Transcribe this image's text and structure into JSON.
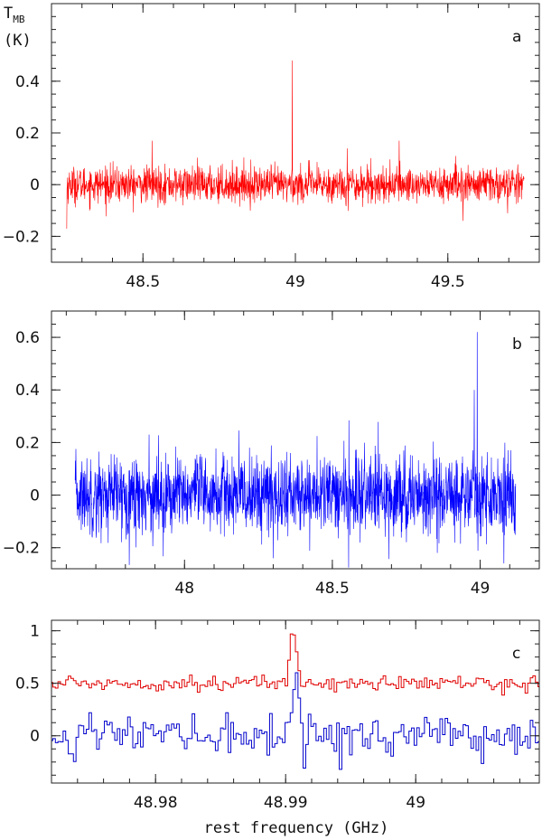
{
  "figure": {
    "ylabel_main": "T",
    "ylabel_sub": "MB",
    "ylabel_unit": "(K)",
    "xlabel": "rest frequency (GHz)"
  },
  "chart_data": [
    {
      "id": "a",
      "type": "line",
      "label": "a",
      "xlim": [
        48.2,
        49.8
      ],
      "ylim": [
        -0.3,
        0.7
      ],
      "xticks": [
        48.5,
        49,
        49.5
      ],
      "xtick_labels": [
        "48.5",
        "49",
        "49.5"
      ],
      "yticks": [
        -0.2,
        0,
        0.2,
        0.4
      ],
      "ytick_labels": [
        "−0.2",
        "0",
        "0.2",
        "0.4"
      ],
      "series": [
        {
          "color": "#ff0000",
          "noise": {
            "x_start": 48.25,
            "x_end": 49.75,
            "n": 1700,
            "rms": 0.035
          },
          "points": [
            {
              "x": 48.25,
              "y": -0.17
            },
            {
              "x": 48.53,
              "y": 0.17
            },
            {
              "x": 48.99,
              "y": 0.48
            },
            {
              "x": 49.34,
              "y": 0.17
            },
            {
              "x": 49.17,
              "y": 0.14
            },
            {
              "x": 49.55,
              "y": -0.14
            }
          ]
        }
      ]
    },
    {
      "id": "b",
      "type": "line",
      "label": "b",
      "xlim": [
        47.55,
        49.2
      ],
      "ylim": [
        -0.28,
        0.7
      ],
      "xticks": [
        48,
        48.5,
        49
      ],
      "xtick_labels": [
        "48",
        "48.5",
        "49"
      ],
      "yticks": [
        -0.2,
        0,
        0.2,
        0.4,
        0.6
      ],
      "ytick_labels": [
        "−0.2",
        "0",
        "0.2",
        "0.4",
        "0.6"
      ],
      "series": [
        {
          "color": "#0000ff",
          "noise": {
            "x_start": 47.63,
            "x_end": 49.12,
            "n": 1800,
            "rms": 0.075
          },
          "points": [
            {
              "x": 48.99,
              "y": 0.62
            },
            {
              "x": 48.98,
              "y": 0.4
            },
            {
              "x": 47.88,
              "y": 0.23
            },
            {
              "x": 49.08,
              "y": -0.26
            },
            {
              "x": 48.3,
              "y": -0.24
            }
          ]
        }
      ]
    },
    {
      "id": "c",
      "type": "line",
      "step": true,
      "label": "c",
      "xlim": [
        48.972,
        49.0095
      ],
      "ylim": [
        -0.45,
        1.1
      ],
      "xticks": [
        48.98,
        48.99,
        49
      ],
      "xtick_labels": [
        "48.98",
        "48.99",
        "49"
      ],
      "yticks": [
        0,
        0.5,
        1
      ],
      "ytick_labels": [
        "0",
        "0.5",
        "1"
      ],
      "series": [
        {
          "color": "#e00000",
          "offset": 0.5,
          "noise": {
            "x_start": 48.972,
            "x_end": 49.0095,
            "n": 190,
            "rms": 0.035
          },
          "points": [
            {
              "x": 48.9903,
              "y": 0.72
            },
            {
              "x": 48.9905,
              "y": 0.97
            },
            {
              "x": 48.9907,
              "y": 0.96
            },
            {
              "x": 48.9909,
              "y": 0.8
            },
            {
              "x": 48.9911,
              "y": 0.62
            }
          ]
        },
        {
          "color": "#0000cc",
          "offset": 0.0,
          "noise": {
            "x_start": 48.972,
            "x_end": 49.0095,
            "n": 190,
            "rms": 0.09
          },
          "points": [
            {
              "x": 48.9905,
              "y": 0.22
            },
            {
              "x": 48.9907,
              "y": 0.44
            },
            {
              "x": 48.9909,
              "y": 0.6
            },
            {
              "x": 48.9911,
              "y": 0.36
            },
            {
              "x": 48.9913,
              "y": 0.12
            },
            {
              "x": 48.975,
              "y": 0.22
            },
            {
              "x": 48.9855,
              "y": 0.22
            },
            {
              "x": 48.9942,
              "y": -0.32
            }
          ]
        }
      ]
    }
  ]
}
